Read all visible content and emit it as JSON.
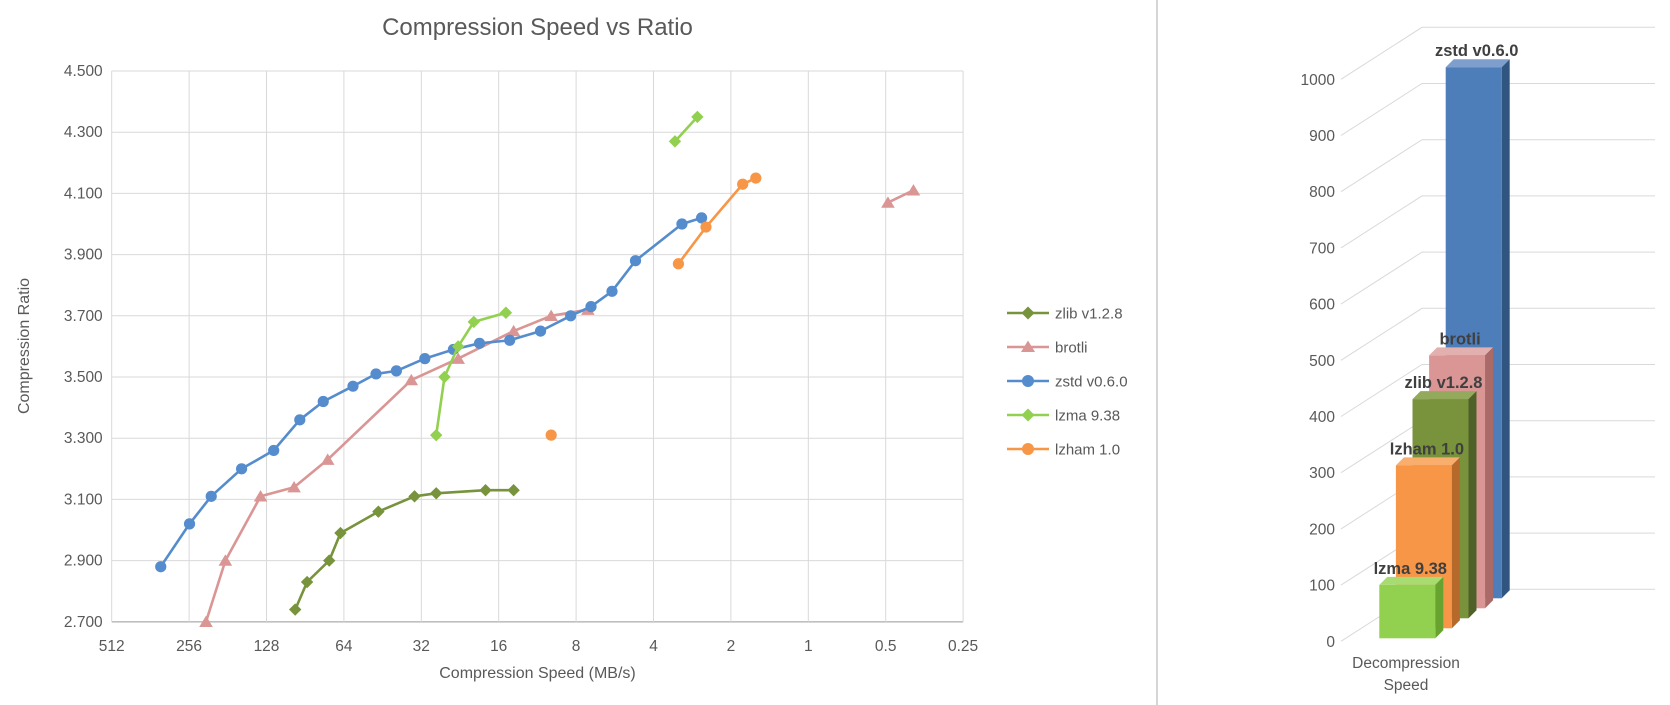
{
  "colors": {
    "title": "#595959",
    "tick_label": "#595959",
    "gridline": "#d9d9d9",
    "axis_line": "#bfbfbf",
    "bar_label": "#3f3f3f",
    "divider": "#d6d6d6",
    "background": "#ffffff"
  },
  "chart_data": [
    {
      "type": "scatter",
      "title": "Compression Speed vs Ratio",
      "xlabel": "Compression Speed (MB/s)",
      "ylabel": "Compression Ratio",
      "x_scale": "log2_reversed",
      "xlim": [
        512,
        0.25
      ],
      "ylim": [
        2.7,
        4.5
      ],
      "grid": "on",
      "legend_position": "right",
      "x_ticks": [
        "512",
        "256",
        "128",
        "64",
        "32",
        "16",
        "8",
        "4",
        "2",
        "1",
        "0.5",
        "0.25"
      ],
      "y_ticks": [
        "4.500",
        "4.300",
        "4.100",
        "3.900",
        "3.700",
        "3.500",
        "3.300",
        "3.100",
        "2.900",
        "2.700"
      ],
      "series": [
        {
          "name": "zlib v1.2.8",
          "color": "#77933C",
          "marker": "diamond",
          "segments": [
            [
              [
                99,
                2.74
              ],
              [
                89,
                2.83
              ],
              [
                73,
                2.9
              ],
              [
                66,
                2.99
              ],
              [
                47,
                3.06
              ],
              [
                34,
                3.11
              ],
              [
                28,
                3.12
              ],
              [
                18,
                3.13
              ],
              [
                14,
                3.13
              ]
            ]
          ]
        },
        {
          "name": "brotli",
          "color": "#D99694",
          "marker": "triangle",
          "segments": [
            [
              [
                220,
                2.7
              ],
              [
                185,
                2.9
              ],
              [
                135,
                3.11
              ],
              [
                100,
                3.14
              ],
              [
                74,
                3.23
              ],
              [
                35,
                3.49
              ],
              [
                23,
                3.56
              ],
              [
                14,
                3.65
              ],
              [
                10,
                3.7
              ],
              [
                7.2,
                3.72
              ]
            ],
            [
              [
                0.49,
                4.07
              ],
              [
                0.39,
                4.11
              ]
            ]
          ]
        },
        {
          "name": "zstd v0.6.0",
          "color": "#558CCD",
          "marker": "circle",
          "segments": [
            [
              [
                330,
                2.88
              ],
              [
                255,
                3.02
              ],
              [
                210,
                3.11
              ],
              [
                160,
                3.2
              ],
              [
                120,
                3.26
              ],
              [
                95,
                3.36
              ],
              [
                77,
                3.42
              ],
              [
                59,
                3.47
              ],
              [
                48,
                3.51
              ],
              [
                40,
                3.52
              ],
              [
                31,
                3.56
              ],
              [
                24,
                3.59
              ],
              [
                19,
                3.61
              ],
              [
                14.5,
                3.62
              ],
              [
                11,
                3.65
              ],
              [
                8.4,
                3.7
              ],
              [
                7,
                3.73
              ],
              [
                5.8,
                3.78
              ],
              [
                4.7,
                3.88
              ],
              [
                3.1,
                4.0
              ],
              [
                2.6,
                4.02
              ]
            ]
          ]
        },
        {
          "name": "lzma 9.38",
          "color": "#92D050",
          "marker": "diamond",
          "segments": [
            [
              [
                28,
                3.31
              ],
              [
                26,
                3.5
              ],
              [
                23,
                3.6
              ],
              [
                20,
                3.68
              ],
              [
                15,
                3.71
              ]
            ],
            [
              [
                3.3,
                4.27
              ],
              [
                2.7,
                4.35
              ]
            ]
          ]
        },
        {
          "name": "lzham 1.0",
          "color": "#F79646",
          "marker": "circle",
          "segments": [
            [
              [
                10,
                3.31
              ]
            ],
            [
              [
                3.2,
                3.87
              ],
              [
                2.5,
                3.99
              ],
              [
                1.8,
                4.13
              ],
              [
                1.6,
                4.15
              ]
            ]
          ]
        }
      ]
    },
    {
      "type": "bar",
      "subtype": "3d-depth-series",
      "categories": [
        "Decompression Speed"
      ],
      "xlabel_lines": [
        "Decompression",
        "Speed"
      ],
      "ylim": [
        0,
        1000
      ],
      "y_tick_step": 100,
      "grid": "on",
      "series_front_to_back": [
        {
          "name": "lzma 9.38",
          "value": 95,
          "front": "#92D050",
          "side": "#68A32F",
          "top": "#A8DB72"
        },
        {
          "name": "lzham 1.0",
          "value": 290,
          "front": "#F79646",
          "side": "#B56A2C",
          "top": "#F9AE6E"
        },
        {
          "name": "zlib v1.2.8",
          "value": 390,
          "front": "#78933C",
          "side": "#4F6128",
          "top": "#93AA5C"
        },
        {
          "name": "brotli",
          "value": 450,
          "front": "#D99694",
          "side": "#A96A68",
          "top": "#E2B0AE"
        },
        {
          "name": "zstd v0.6.0",
          "value": 945,
          "front": "#4E7EBA",
          "side": "#2F5580",
          "top": "#7E9FCE"
        }
      ]
    }
  ]
}
